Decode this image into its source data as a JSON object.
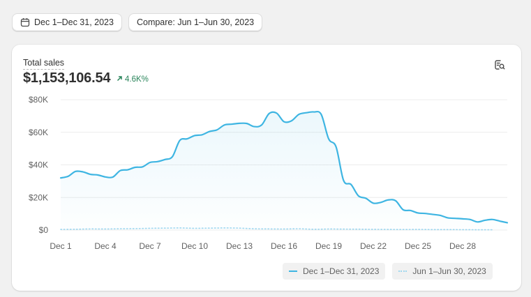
{
  "toolbar": {
    "date_range_label": "Dec 1–Dec 31, 2023",
    "compare_label": "Compare: Jun 1–Jun 30, 2023",
    "calendar_icon": "calendar-icon"
  },
  "card": {
    "title": "Total sales",
    "value": "$1,153,106.54",
    "change": "4.6K%",
    "change_color": "#29845a",
    "explore_icon": "explore-data-icon"
  },
  "colors": {
    "primary_series": "#3eb5e2",
    "comparison_series": "#9ed7ef",
    "gridline": "#ececec"
  },
  "chart_data": {
    "type": "line",
    "title": "Total sales",
    "xlabel": "",
    "ylabel": "",
    "ylim": [
      0,
      80000
    ],
    "y_ticks": [
      "$80K",
      "$60K",
      "$40K",
      "$20K",
      "$0"
    ],
    "y_tick_values": [
      80000,
      60000,
      40000,
      20000,
      0
    ],
    "x_tick_labels": [
      "Dec 1",
      "Dec 4",
      "Dec 7",
      "Dec 10",
      "Dec 13",
      "Dec 16",
      "Dec 19",
      "Dec 22",
      "Dec 25",
      "Dec 28"
    ],
    "x_tick_days": [
      1,
      4,
      7,
      10,
      13,
      16,
      19,
      22,
      25,
      28
    ],
    "x_range": [
      1,
      31
    ],
    "grid": true,
    "legend_position": "bottom-right",
    "series": [
      {
        "name": "Dec 1–Dec 31, 2023",
        "style": "solid",
        "x": [
          1,
          1.5,
          2,
          2.5,
          3,
          3.5,
          4,
          4.5,
          5,
          5.5,
          6,
          6.5,
          7,
          7.5,
          8,
          8.5,
          9,
          9.5,
          10,
          10.5,
          11,
          11.5,
          12,
          12.5,
          13,
          13.5,
          14,
          14.5,
          15,
          15.5,
          16,
          16.5,
          17,
          17.5,
          18,
          18.5,
          19,
          19.5,
          20,
          20.5,
          21,
          21.5,
          22,
          22.5,
          23,
          23.5,
          24,
          24.5,
          25,
          25.5,
          26,
          26.5,
          27,
          27.5,
          28,
          28.5,
          29,
          29.5,
          30,
          30.5,
          31
        ],
        "values": [
          32000,
          33000,
          36000,
          35700,
          34200,
          33800,
          32600,
          32500,
          36500,
          37000,
          38500,
          38800,
          41500,
          42000,
          43300,
          45000,
          55000,
          56000,
          58000,
          58500,
          60500,
          61500,
          64500,
          65000,
          65500,
          65400,
          63500,
          64500,
          71500,
          71800,
          66500,
          67000,
          71000,
          72000,
          72500,
          71000,
          56000,
          51000,
          30500,
          28000,
          21000,
          19500,
          16500,
          17000,
          18500,
          18000,
          12500,
          12000,
          10500,
          10200,
          9600,
          9000,
          7500,
          7200,
          6900,
          6500,
          5000,
          6000,
          6500,
          5500,
          4500
        ]
      },
      {
        "name": "Jun 1–Jun 30, 2023",
        "style": "dotted",
        "x": [
          1,
          2,
          3,
          4,
          5,
          6,
          7,
          8,
          9,
          10,
          11,
          12,
          13,
          14,
          15,
          16,
          17,
          18,
          19,
          20,
          21,
          22,
          23,
          24,
          25,
          26,
          27,
          28,
          29,
          30
        ],
        "values": [
          400,
          500,
          700,
          650,
          800,
          900,
          1100,
          1200,
          1300,
          1100,
          1200,
          1300,
          1200,
          800,
          700,
          650,
          800,
          500,
          650,
          600,
          550,
          450,
          400,
          350,
          400,
          300,
          300,
          250,
          200,
          200
        ]
      }
    ]
  }
}
